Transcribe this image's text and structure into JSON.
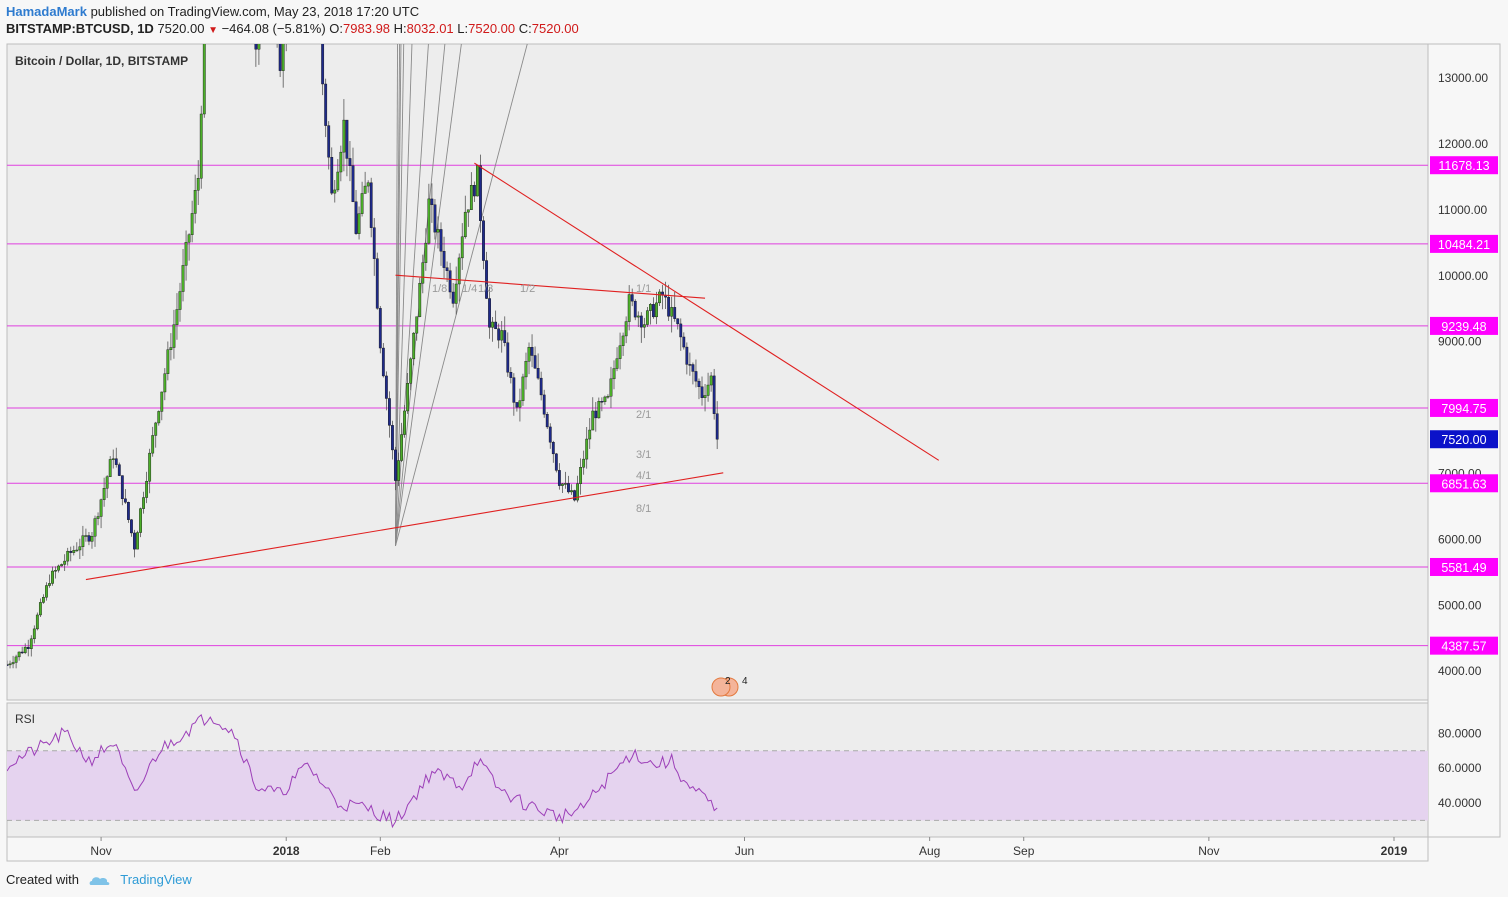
{
  "header": {
    "author": "HamadaMark",
    "published": "published on TradingView.com, May 23, 2018 17:20 UTC",
    "symbol": "BITSTAMP:BTCUSD, 1D",
    "last": "7520.00",
    "change": "−464.08 (−5.81%)",
    "o_label": "O:",
    "o_value": "7983.98",
    "h_label": "H:",
    "h_value": "8032.01",
    "l_label": "L:",
    "l_value": "7520.00",
    "c_label": "C:",
    "c_value": "7520.00"
  },
  "footer": {
    "created_with": "Created with",
    "brand": "TradingView"
  },
  "colors": {
    "up": "#4caf2a",
    "down": "#1e2a8a",
    "level_line": "#e040e0",
    "level_badge": "#ff00ff",
    "price_badge": "#0b12c9",
    "trend": "#e02020",
    "fan": "#8a8a8a",
    "rsi": "#9c3fb8",
    "rsi_band": "#e5d3ef"
  },
  "event_marks": [
    "2",
    "4"
  ],
  "chart_data": [
    {
      "type": "candlestick",
      "title": "Bitcoin / Dollar, 1D, BITSTAMP",
      "x_ticks": [
        "Nov",
        "2018",
        "Feb",
        "Apr",
        "Jun",
        "Aug",
        "Sep",
        "Nov",
        "2019"
      ],
      "y_ticks": [
        "4000.00",
        "5000.00",
        "6000.00",
        "7000.00",
        "8000.00",
        "9000.00",
        "10000.00",
        "11000.00",
        "12000.00",
        "13000.00"
      ],
      "ylim": [
        3500,
        13500
      ],
      "levels": [
        {
          "label": "11678.13",
          "value": 11678.13
        },
        {
          "label": "10484.21",
          "value": 10484.21
        },
        {
          "label": "9239.48",
          "value": 9239.48
        },
        {
          "label": "7994.75",
          "value": 7994.75
        },
        {
          "label": "6851.63",
          "value": 6851.63
        },
        {
          "label": "5581.49",
          "value": 5581.49
        },
        {
          "label": "4387.57",
          "value": 4387.57
        }
      ],
      "last_price": {
        "label": "7520.00",
        "value": 7520
      },
      "gann_labels": [
        "1/8",
        "1/4",
        "1/3",
        "1/2",
        "1/1",
        "2/1",
        "3/1",
        "4/1",
        "8/1"
      ],
      "path_anchors": [
        {
          "x": "2017-10-01",
          "y": 4100
        },
        {
          "x": "2017-10-08",
          "y": 4400
        },
        {
          "x": "2017-10-15",
          "y": 5400
        },
        {
          "x": "2017-10-22",
          "y": 5800
        },
        {
          "x": "2017-10-29",
          "y": 6100
        },
        {
          "x": "2017-11-05",
          "y": 7300
        },
        {
          "x": "2017-11-12",
          "y": 5900
        },
        {
          "x": "2017-11-19",
          "y": 7800
        },
        {
          "x": "2017-11-26",
          "y": 9500
        },
        {
          "x": "2017-12-03",
          "y": 11500
        },
        {
          "x": "2017-12-07",
          "y": 16000
        },
        {
          "x": "2017-12-17",
          "y": 19000
        },
        {
          "x": "2017-12-22",
          "y": 13500
        },
        {
          "x": "2017-12-27",
          "y": 15500
        },
        {
          "x": "2017-12-30",
          "y": 13000
        },
        {
          "x": "2018-01-06",
          "y": 16500
        },
        {
          "x": "2018-01-12",
          "y": 13500
        },
        {
          "x": "2018-01-16",
          "y": 11200
        },
        {
          "x": "2018-01-20",
          "y": 12300
        },
        {
          "x": "2018-01-24",
          "y": 10700
        },
        {
          "x": "2018-01-28",
          "y": 11500
        },
        {
          "x": "2018-02-01",
          "y": 9000
        },
        {
          "x": "2018-02-06",
          "y": 6900
        },
        {
          "x": "2018-02-10",
          "y": 8300
        },
        {
          "x": "2018-02-15",
          "y": 10200
        },
        {
          "x": "2018-02-17",
          "y": 11100
        },
        {
          "x": "2018-02-21",
          "y": 10400
        },
        {
          "x": "2018-02-25",
          "y": 9700
        },
        {
          "x": "2018-03-01",
          "y": 11000
        },
        {
          "x": "2018-03-05",
          "y": 11500
        },
        {
          "x": "2018-03-09",
          "y": 9200
        },
        {
          "x": "2018-03-13",
          "y": 9100
        },
        {
          "x": "2018-03-18",
          "y": 7900
        },
        {
          "x": "2018-03-22",
          "y": 8900
        },
        {
          "x": "2018-03-26",
          "y": 8200
        },
        {
          "x": "2018-04-01",
          "y": 6900
        },
        {
          "x": "2018-04-06",
          "y": 6600
        },
        {
          "x": "2018-04-12",
          "y": 7900
        },
        {
          "x": "2018-04-17",
          "y": 8100
        },
        {
          "x": "2018-04-20",
          "y": 8850
        },
        {
          "x": "2018-04-24",
          "y": 9600
        },
        {
          "x": "2018-04-29",
          "y": 9300
        },
        {
          "x": "2018-05-05",
          "y": 9700
        },
        {
          "x": "2018-05-10",
          "y": 9200
        },
        {
          "x": "2018-05-14",
          "y": 8600
        },
        {
          "x": "2018-05-18",
          "y": 8200
        },
        {
          "x": "2018-05-21",
          "y": 8450
        },
        {
          "x": "2018-05-23",
          "y": 7520
        }
      ],
      "trend_lines": [
        {
          "from": {
            "x": "2017-10-27",
            "y": 5390
          },
          "to": {
            "x": "2018-05-25",
            "y": 7010
          }
        },
        {
          "from": {
            "x": "2018-02-06",
            "y": 10010
          },
          "to": {
            "x": "2018-05-19",
            "y": 9660
          }
        },
        {
          "from": {
            "x": "2018-03-04",
            "y": 11710
          },
          "to": {
            "x": "2018-08-04",
            "y": 7200
          }
        }
      ],
      "gann_origin": {
        "x": "2018-02-06",
        "y": 5900
      }
    },
    {
      "type": "line",
      "title": "RSI",
      "y_ticks": [
        "40.0000",
        "60.0000",
        "80.0000"
      ],
      "ylim": [
        27,
        95
      ],
      "band": [
        30,
        70
      ],
      "anchors": [
        {
          "x": "2017-10-01",
          "y": 62
        },
        {
          "x": "2017-10-12",
          "y": 72
        },
        {
          "x": "2017-10-20",
          "y": 80
        },
        {
          "x": "2017-10-28",
          "y": 64
        },
        {
          "x": "2017-11-05",
          "y": 75
        },
        {
          "x": "2017-11-12",
          "y": 44
        },
        {
          "x": "2017-11-20",
          "y": 70
        },
        {
          "x": "2017-11-28",
          "y": 80
        },
        {
          "x": "2017-12-07",
          "y": 91
        },
        {
          "x": "2017-12-15",
          "y": 80
        },
        {
          "x": "2017-12-22",
          "y": 50
        },
        {
          "x": "2017-12-30",
          "y": 45
        },
        {
          "x": "2018-01-08",
          "y": 62
        },
        {
          "x": "2018-01-18",
          "y": 40
        },
        {
          "x": "2018-01-28",
          "y": 37
        },
        {
          "x": "2018-02-06",
          "y": 29
        },
        {
          "x": "2018-02-18",
          "y": 58
        },
        {
          "x": "2018-02-28",
          "y": 50
        },
        {
          "x": "2018-03-05",
          "y": 65
        },
        {
          "x": "2018-03-12",
          "y": 48
        },
        {
          "x": "2018-03-20",
          "y": 40
        },
        {
          "x": "2018-04-01",
          "y": 32
        },
        {
          "x": "2018-04-08",
          "y": 36
        },
        {
          "x": "2018-04-15",
          "y": 50
        },
        {
          "x": "2018-04-25",
          "y": 69
        },
        {
          "x": "2018-05-02",
          "y": 62
        },
        {
          "x": "2018-05-08",
          "y": 64
        },
        {
          "x": "2018-05-14",
          "y": 48
        },
        {
          "x": "2018-05-19",
          "y": 43
        },
        {
          "x": "2018-05-23",
          "y": 34
        }
      ]
    }
  ]
}
